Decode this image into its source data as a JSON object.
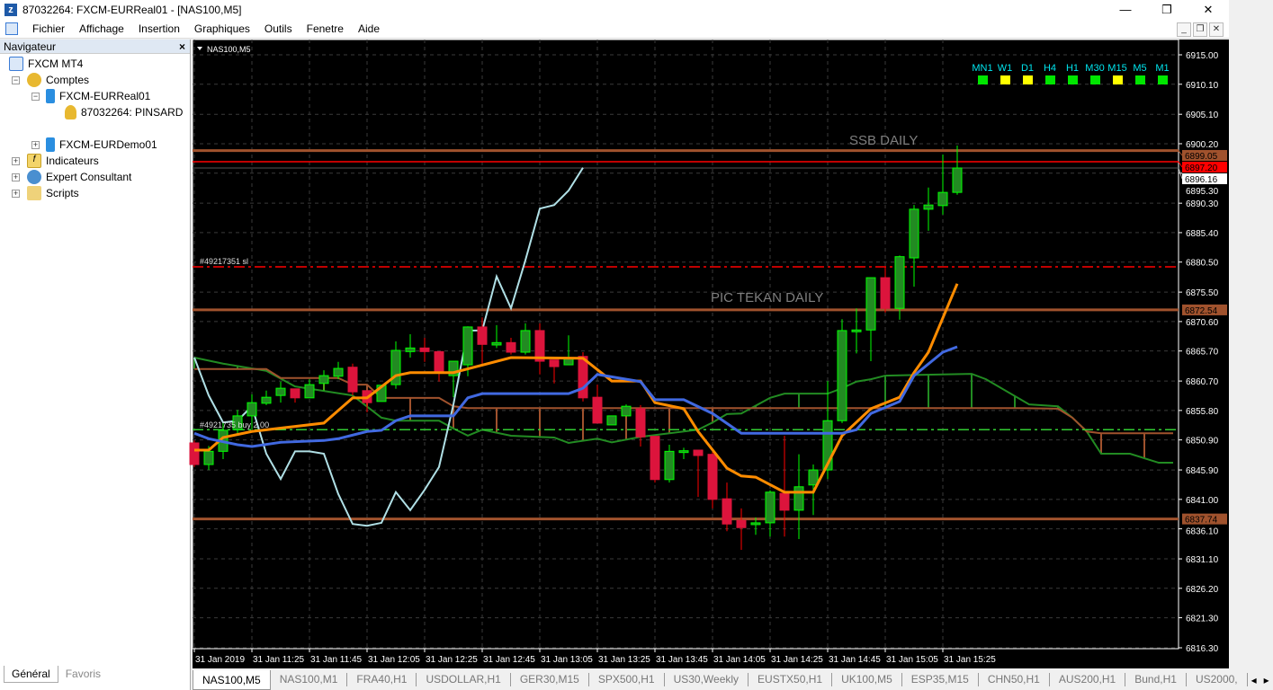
{
  "window": {
    "title": "87032264: FXCM-EURReal01 - [NAS100,M5]",
    "minimize": "—",
    "maximize": "❐",
    "close": "✕"
  },
  "menu": [
    "Fichier",
    "Affichage",
    "Insertion",
    "Graphiques",
    "Outils",
    "Fenetre",
    "Aide"
  ],
  "mdi": {
    "minimize": "_",
    "restore": "❐",
    "close": "✕"
  },
  "navigator": {
    "title": "Navigateur",
    "close": "×",
    "tree": [
      {
        "label": "FXCM MT4",
        "icon": "terminal-icon"
      },
      {
        "label": "Comptes",
        "icon": "accounts-icon"
      },
      {
        "label": "FXCM-EURReal01",
        "icon": "server-icon"
      },
      {
        "label": "87032264: PINSARD",
        "icon": "user-icon"
      },
      {
        "label": "FXCM-EURDemo01",
        "icon": "server-icon"
      },
      {
        "label": "Indicateurs",
        "icon": "function-icon"
      },
      {
        "label": "Expert Consultant",
        "icon": "expert-icon"
      },
      {
        "label": "Scripts",
        "icon": "script-icon"
      }
    ],
    "tabs": [
      "Général",
      "Favoris"
    ]
  },
  "chart": {
    "symbol_label": "NAS100,M5",
    "signals": [
      {
        "tf": "MN1",
        "color": "#00e600"
      },
      {
        "tf": "W1",
        "color": "#ffff00"
      },
      {
        "tf": "D1",
        "color": "#ffff00"
      },
      {
        "tf": "H4",
        "color": "#00e600"
      },
      {
        "tf": "H1",
        "color": "#00e600"
      },
      {
        "tf": "M30",
        "color": "#00e600"
      },
      {
        "tf": "M15",
        "color": "#ffff00"
      },
      {
        "tf": "M5",
        "color": "#00e600"
      },
      {
        "tf": "M1",
        "color": "#00e600"
      }
    ],
    "annotations": {
      "ssb": "SSB DAILY",
      "pic": "PIC TEKAN DAILY",
      "sl": "#49217351 sl",
      "buy": "#4921735  buy 2.00"
    },
    "colors": {
      "bull": "#228b22",
      "bull_border": "#00ff00",
      "bear": "#dc143c",
      "tenkan": "#ff8c00",
      "kijun": "#4169e1",
      "chikou": "#b0e0e6",
      "span_a": "#228b22",
      "span_b": "#a0522d",
      "level": "#a0522d"
    }
  },
  "chart_data": {
    "type": "candlestick",
    "ylim": [
      6815,
      6917
    ],
    "yticks": [
      "6915.00",
      "6910.10",
      "6905.10",
      "6900.20",
      "6895.30",
      "6890.30",
      "6885.40",
      "6880.50",
      "6875.50",
      "6870.60",
      "6865.70",
      "6860.70",
      "6855.80",
      "6850.90",
      "6845.90",
      "6841.00",
      "6836.10",
      "6831.10",
      "6826.20",
      "6821.30",
      "6816.30"
    ],
    "xticks": [
      {
        "i": 0,
        "label": "31 Jan 2019"
      },
      {
        "i": 4,
        "label": "31 Jan 11:25"
      },
      {
        "i": 8,
        "label": "31 Jan 11:45"
      },
      {
        "i": 12,
        "label": "31 Jan 12:05"
      },
      {
        "i": 16,
        "label": "31 Jan 12:25"
      },
      {
        "i": 20,
        "label": "31 Jan 12:45"
      },
      {
        "i": 24,
        "label": "31 Jan 13:05"
      },
      {
        "i": 28,
        "label": "31 Jan 13:25"
      },
      {
        "i": 32,
        "label": "31 Jan 13:45"
      },
      {
        "i": 36,
        "label": "31 Jan 14:05"
      },
      {
        "i": 40,
        "label": "31 Jan 14:25"
      },
      {
        "i": 44,
        "label": "31 Jan 14:45"
      },
      {
        "i": 48,
        "label": "31 Jan 15:05"
      },
      {
        "i": 52,
        "label": "31 Jan 15:25"
      }
    ],
    "ohlc": [
      [
        6850.4,
        6850.8,
        6846.4,
        6846.8
      ],
      [
        6846.8,
        6849.9,
        6845.9,
        6849.0
      ],
      [
        6849.0,
        6853.7,
        6847.7,
        6852.5
      ],
      [
        6852.6,
        6855.9,
        6851.9,
        6854.9
      ],
      [
        6854.9,
        6858.5,
        6852.6,
        6857.1
      ],
      [
        6857.0,
        6859.1,
        6856.7,
        6858.0
      ],
      [
        6858.3,
        6860.6,
        6857.1,
        6859.5
      ],
      [
        6859.4,
        6859.4,
        6857.1,
        6857.9
      ],
      [
        6857.9,
        6861.0,
        6857.9,
        6860.1
      ],
      [
        6860.3,
        6862.5,
        6859.1,
        6861.6
      ],
      [
        6861.5,
        6863.9,
        6861.0,
        6862.8
      ],
      [
        6863.0,
        6863.6,
        6858.3,
        6858.9
      ],
      [
        6859.1,
        6859.1,
        6855.5,
        6857.1
      ],
      [
        6857.3,
        6860.0,
        6857.3,
        6860.0
      ],
      [
        6860.1,
        6867.3,
        6859.4,
        6865.8
      ],
      [
        6865.6,
        6868.5,
        6864.6,
        6866.2
      ],
      [
        6866.2,
        6867.9,
        6863.9,
        6865.6
      ],
      [
        6865.6,
        6865.6,
        6860.6,
        6862.1
      ],
      [
        6861.6,
        6864.0,
        6858.0,
        6864.0
      ],
      [
        6863.4,
        6869.8,
        6861.5,
        6869.7
      ],
      [
        6869.7,
        6871.3,
        6863.6,
        6866.8
      ],
      [
        6866.7,
        6870.0,
        6866.2,
        6867.1
      ],
      [
        6867.1,
        6867.9,
        6865.1,
        6865.5
      ],
      [
        6865.5,
        6870.3,
        6865.1,
        6869.1
      ],
      [
        6869.1,
        6870.3,
        6861.8,
        6864.0
      ],
      [
        6864.2,
        6864.2,
        6860.3,
        6863.1
      ],
      [
        6863.4,
        6868.3,
        6863.4,
        6864.5
      ],
      [
        6864.8,
        6865.5,
        6857.3,
        6857.9
      ],
      [
        6858.0,
        6860.1,
        6853.7,
        6853.7
      ],
      [
        6853.4,
        6854.9,
        6853.4,
        6854.9
      ],
      [
        6854.9,
        6856.8,
        6854.9,
        6856.5
      ],
      [
        6856.1,
        6856.7,
        6849.8,
        6851.4
      ],
      [
        6851.5,
        6851.5,
        6843.8,
        6844.3
      ],
      [
        6844.3,
        6850.1,
        6843.8,
        6849.0
      ],
      [
        6849.0,
        6849.6,
        6847.7,
        6849.1
      ],
      [
        6849.2,
        6849.2,
        6841.4,
        6848.3
      ],
      [
        6848.5,
        6848.9,
        6839.5,
        6841.0
      ],
      [
        6841.1,
        6843.8,
        6835.7,
        6836.9
      ],
      [
        6837.5,
        6839.5,
        6832.6,
        6836.3
      ],
      [
        6836.8,
        6838.0,
        6835.1,
        6837.1
      ],
      [
        6837.1,
        6842.5,
        6834.8,
        6842.2
      ],
      [
        6842.0,
        6851.6,
        6834.8,
        6839.2
      ],
      [
        6839.2,
        6848.5,
        6834.4,
        6843.1
      ],
      [
        6843.4,
        6846.8,
        6838.4,
        6845.9
      ],
      [
        6845.9,
        6860.7,
        6844.4,
        6854.1
      ],
      [
        6854.1,
        6871.0,
        6853.7,
        6869.1
      ],
      [
        6869.1,
        6872.8,
        6865.3,
        6869.2
      ],
      [
        6869.2,
        6877.9,
        6864.0,
        6877.9
      ],
      [
        6877.9,
        6879.7,
        6872.1,
        6872.8
      ],
      [
        6872.8,
        6881.6,
        6870.9,
        6881.4
      ],
      [
        6881.2,
        6890.0,
        6876.4,
        6889.3
      ],
      [
        6889.3,
        6892.9,
        6885.7,
        6890.0
      ],
      [
        6889.9,
        6898.4,
        6888.4,
        6892.1
      ],
      [
        6892.1,
        6899.9,
        6891.7,
        6896.16
      ]
    ],
    "tenkan": [
      [
        0,
        6849.2
      ],
      [
        1,
        6849.2
      ],
      [
        2,
        6851.3
      ],
      [
        4,
        6852.3
      ],
      [
        9,
        6853.7
      ],
      [
        11,
        6857.9
      ],
      [
        12,
        6857.9
      ],
      [
        14,
        6861.6
      ],
      [
        15,
        6862.1
      ],
      [
        18,
        6862.1
      ],
      [
        22,
        6864.6
      ],
      [
        27,
        6864.5
      ],
      [
        29,
        6860.7
      ],
      [
        31,
        6860.7
      ],
      [
        32,
        6857.1
      ],
      [
        34,
        6856.1
      ],
      [
        35,
        6852.3
      ],
      [
        37,
        6846.2
      ],
      [
        38,
        6844.9
      ],
      [
        39,
        6844.7
      ],
      [
        41,
        6842.2
      ],
      [
        43,
        6842.2
      ],
      [
        45,
        6851.6
      ],
      [
        47,
        6856.1
      ],
      [
        49,
        6858.0
      ],
      [
        50,
        6862.1
      ],
      [
        51,
        6865.5
      ],
      [
        53,
        6876.9
      ]
    ],
    "kijun": [
      [
        0,
        6852.0
      ],
      [
        1,
        6851.1
      ],
      [
        3,
        6850.1
      ],
      [
        4,
        6849.8
      ],
      [
        6,
        6850.5
      ],
      [
        9,
        6850.8
      ],
      [
        10,
        6851.1
      ],
      [
        12,
        6852.3
      ],
      [
        13,
        6852.5
      ],
      [
        14,
        6854.1
      ],
      [
        15,
        6854.9
      ],
      [
        18,
        6854.9
      ],
      [
        19,
        6857.9
      ],
      [
        20,
        6858.6
      ],
      [
        26,
        6858.6
      ],
      [
        27,
        6859.5
      ],
      [
        28,
        6861.8
      ],
      [
        31,
        6860.6
      ],
      [
        32,
        6857.6
      ],
      [
        34,
        6857.6
      ],
      [
        36,
        6855.3
      ],
      [
        38,
        6852.0
      ],
      [
        45,
        6852.0
      ],
      [
        46,
        6852.6
      ],
      [
        47,
        6855.3
      ],
      [
        49,
        6857.3
      ],
      [
        50,
        6861.6
      ],
      [
        52,
        6865.5
      ],
      [
        53,
        6866.4
      ]
    ],
    "chikou": [
      [
        0,
        6864.6
      ],
      [
        1,
        6858.3
      ],
      [
        2,
        6853.8
      ],
      [
        3,
        6854.1
      ],
      [
        4,
        6856.5
      ],
      [
        5,
        6848.6
      ],
      [
        6,
        6844.4
      ],
      [
        7,
        6849.0
      ],
      [
        8,
        6849.0
      ],
      [
        9,
        6848.6
      ],
      [
        10,
        6841.9
      ],
      [
        11,
        6836.9
      ],
      [
        12,
        6836.6
      ],
      [
        13,
        6837.1
      ],
      [
        14,
        6842.2
      ],
      [
        15,
        6839.2
      ],
      [
        16,
        6842.6
      ],
      [
        17,
        6846.4
      ],
      [
        18,
        6856.8
      ],
      [
        19,
        6869.1
      ],
      [
        20,
        6869.1
      ],
      [
        21,
        6878.1
      ],
      [
        22,
        6872.8
      ],
      [
        23,
        6880.8
      ],
      [
        24,
        6889.4
      ],
      [
        25,
        6890.0
      ],
      [
        26,
        6892.4
      ],
      [
        27,
        6896.2
      ]
    ],
    "span_a": [
      [
        0,
        6864.6
      ],
      [
        2,
        6863.6
      ],
      [
        5,
        6862.4
      ],
      [
        7,
        6859.8
      ],
      [
        11,
        6858.3
      ],
      [
        13,
        6854.6
      ],
      [
        14,
        6854.1
      ],
      [
        17,
        6854.1
      ],
      [
        18,
        6852.8
      ],
      [
        19,
        6851.6
      ],
      [
        20,
        6852.6
      ],
      [
        22,
        6851.6
      ],
      [
        25,
        6851.3
      ],
      [
        26,
        6850.4
      ],
      [
        28,
        6851.1
      ],
      [
        29,
        6850.5
      ],
      [
        31,
        6851.4
      ],
      [
        34,
        6852.3
      ],
      [
        35,
        6852.6
      ],
      [
        36,
        6853.8
      ],
      [
        37,
        6855.2
      ],
      [
        38,
        6855.3
      ],
      [
        40,
        6857.9
      ],
      [
        41,
        6858.6
      ],
      [
        44,
        6858.6
      ],
      [
        45,
        6859.5
      ],
      [
        46,
        6860.6
      ],
      [
        47,
        6861.0
      ],
      [
        48,
        6861.6
      ],
      [
        54,
        6861.9
      ],
      [
        55,
        6861.0
      ],
      [
        58,
        6856.8
      ],
      [
        60,
        6856.5
      ],
      [
        61,
        6854.6
      ],
      [
        62,
        6852.3
      ],
      [
        63,
        6848.6
      ],
      [
        65,
        6848.6
      ],
      [
        67,
        6847.1
      ],
      [
        68,
        6847.1
      ]
    ],
    "span_b": [
      [
        0,
        6862.7
      ],
      [
        5,
        6862.7
      ],
      [
        6,
        6861.2
      ],
      [
        10,
        6861.2
      ],
      [
        11,
        6860.1
      ],
      [
        12,
        6860.1
      ],
      [
        13,
        6857.9
      ],
      [
        17,
        6857.9
      ],
      [
        18,
        6856.5
      ],
      [
        19,
        6856.2
      ],
      [
        57,
        6856.2
      ],
      [
        60,
        6856.1
      ],
      [
        61,
        6854.6
      ],
      [
        62,
        6852.3
      ],
      [
        63,
        6852.0
      ],
      [
        68,
        6852.0
      ]
    ],
    "levels": [
      {
        "name": "ssb-daily-level",
        "price": 6899.05,
        "label": "6899.05",
        "color": "#a0522d",
        "style": "solid",
        "bg": "#a0522d",
        "fg": "#000"
      },
      {
        "name": "red-level",
        "price": 6897.2,
        "label": "6897.20",
        "color": "#ff0000",
        "style": "solid",
        "bg": "#ff0000",
        "fg": "#000"
      },
      {
        "name": "bid-level",
        "price": 6896.16,
        "label": "6896.16",
        "color": "#555555",
        "style": "solid",
        "bg": "#ffffff",
        "fg": "#000"
      },
      {
        "name": "stop-loss-level",
        "price": 6879.7,
        "label": "",
        "color": "#ff0000",
        "style": "dashdot"
      },
      {
        "name": "pic-tekan-level",
        "price": 6872.54,
        "label": "6872.54",
        "color": "#a0522d",
        "style": "solid",
        "bg": "#a0522d",
        "fg": "#000"
      },
      {
        "name": "buy-order-level",
        "price": 6852.6,
        "label": "",
        "color": "#32cd32",
        "style": "dashdot"
      },
      {
        "name": "support-level",
        "price": 6837.74,
        "label": "6837.74",
        "color": "#a0522d",
        "style": "solid",
        "bg": "#a0522d",
        "fg": "#000"
      }
    ]
  },
  "tabs": [
    "NAS100,M5",
    "NAS100,M1",
    "FRA40,H1",
    "USDOLLAR,H1",
    "GER30,M15",
    "SPX500,H1",
    "US30,Weekly",
    "EUSTX50,H1",
    "UK100,M5",
    "ESP35,M15",
    "CHN50,H1",
    "AUS200,H1",
    "Bund,H1",
    "US2000,"
  ],
  "tab_scroll": {
    "left": "◂",
    "right": "▸"
  }
}
